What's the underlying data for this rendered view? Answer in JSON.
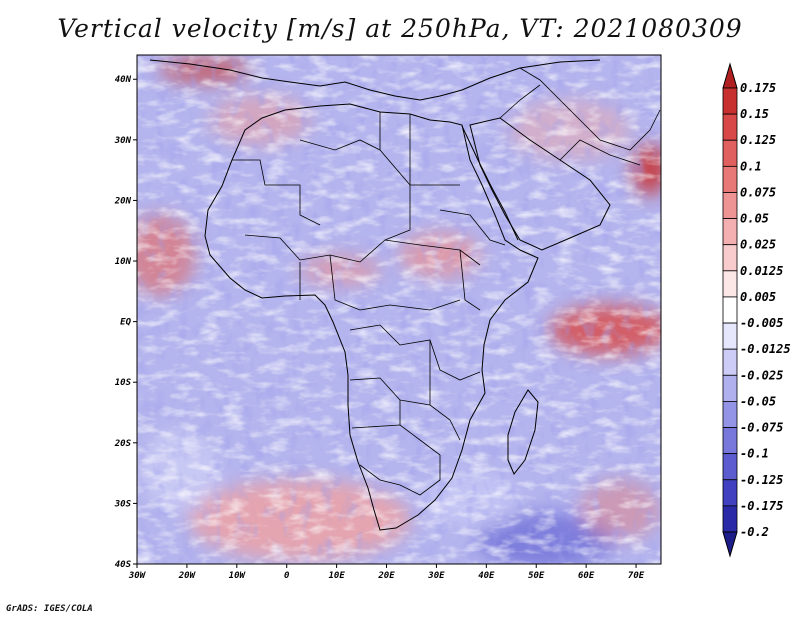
{
  "title": "Vertical velocity [m/s] at 250hPa, VT: 2021080309",
  "footer": "GrADS: IGES/COLA",
  "map": {
    "lat_labels": [
      "40N",
      "30N",
      "20N",
      "10N",
      "EQ",
      "10S",
      "20S",
      "30S",
      "40S"
    ],
    "lon_labels": [
      "30W",
      "20W",
      "10W",
      "0",
      "10E",
      "20E",
      "30E",
      "40E",
      "50E",
      "60E",
      "70E"
    ],
    "lat_range": [
      -40,
      44
    ],
    "lon_range": [
      -30,
      75
    ]
  },
  "colorbar": {
    "labels": [
      "0.175",
      "0.15",
      "0.125",
      "0.1",
      "0.075",
      "0.05",
      "0.025",
      "0.0125",
      "0.005",
      "-0.005",
      "-0.0125",
      "-0.025",
      "-0.05",
      "-0.075",
      "-0.1",
      "-0.125",
      "-0.175",
      "-0.2"
    ],
    "colors": [
      "#b02020",
      "#c83030",
      "#d84848",
      "#e06060",
      "#e87878",
      "#ef9494",
      "#f4b0b0",
      "#f8cccc",
      "#fce6e6",
      "#ffffff",
      "#e6e6fc",
      "#ccccf6",
      "#b0b0ef",
      "#9494e6",
      "#7878dc",
      "#5c5cd0",
      "#4040c0",
      "#2a2aa8",
      "#1e1e8a"
    ]
  }
}
